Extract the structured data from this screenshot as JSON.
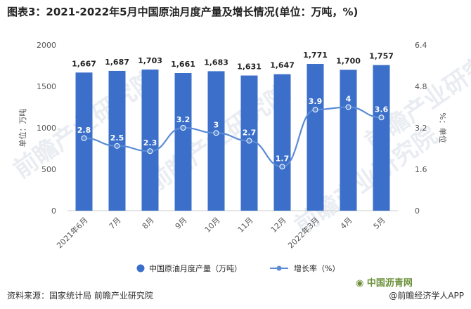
{
  "title": "图表3：2021-2022年5月中国原油月度产量及增长情况(单位：万吨，%)",
  "watermarks": [
    "前瞻产业研究院",
    "前瞻产业研究院",
    "前瞻产业研究院",
    "前瞻产业研究院"
  ],
  "footer": {
    "source": "资料来源：国家统计局 前瞻产业研究院",
    "app": "@前瞻经济学人APP",
    "logo_text": "中国沥青网"
  },
  "colors": {
    "bar": "#3b6fc9",
    "line": "#5b8bd5",
    "axis_text": "#555555",
    "grid": "#e6e6e6"
  },
  "chart_data": {
    "type": "bar",
    "categories": [
      "2021年6月",
      "7月",
      "8月",
      "9月",
      "10月",
      "11月",
      "12月",
      "2022年3月",
      "4月",
      "5月"
    ],
    "series": [
      {
        "name": "中国原油月度产量（万吨）",
        "type": "bar",
        "axis": "left",
        "values": [
          1667,
          1687,
          1703,
          1661,
          1683,
          1631,
          1647,
          1771,
          1700,
          1757
        ],
        "labels": [
          "1,667",
          "1,687",
          "1,703",
          "1,661",
          "1,683",
          "1,631",
          "1,647",
          "1,771",
          "1,700",
          "1,757"
        ]
      },
      {
        "name": "增长率（%）",
        "type": "line",
        "axis": "right",
        "values": [
          2.8,
          2.5,
          2.3,
          3.2,
          3,
          2.7,
          1.7,
          3.9,
          4,
          3.6
        ],
        "labels": [
          "2.8",
          "2.5",
          "2.3",
          "3.2",
          "3",
          "2.7",
          "1.7",
          "3.9",
          "4",
          "3.6"
        ]
      }
    ],
    "ylabel": "单位：万吨",
    "y2label": "%：单位",
    "ylim": [
      0,
      2000
    ],
    "y2lim": [
      0,
      6.4
    ],
    "yticks": [
      "0",
      "500",
      "1000",
      "1500",
      "2000"
    ],
    "y2ticks": [
      "0",
      "1.6",
      "3.2",
      "4.8",
      "6.4"
    ],
    "grid": false,
    "legend_position": "bottom"
  }
}
